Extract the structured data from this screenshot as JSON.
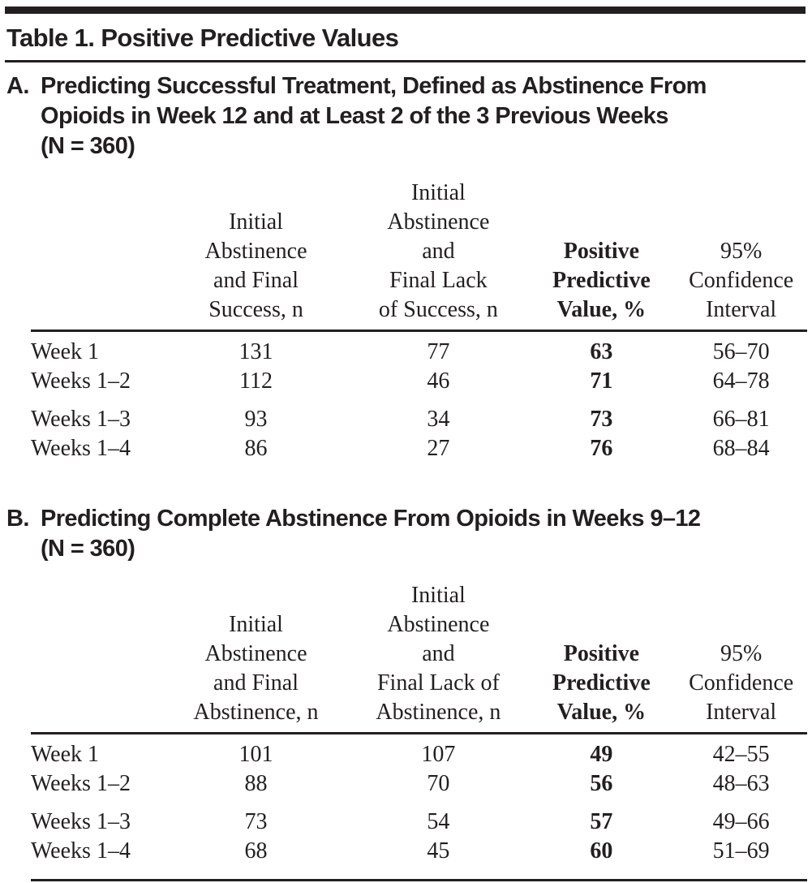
{
  "colors": {
    "text": "#231f20",
    "rule": "#231f20",
    "background": "#ffffff"
  },
  "table_title": "Table 1. Positive Predictive Values",
  "sections": [
    {
      "marker": "A.",
      "heading": "Predicting Successful Treatment, Defined as Abstinence From\nOpioids in Week 12 and at Least 2 of the 3 Previous Weeks\n(N = 360)",
      "columns": [
        "",
        "Initial\nAbstinence\nand Final\nSuccess, n",
        "Initial\nAbstinence\nand\nFinal Lack\nof Success, n",
        "Positive\nPredictive\nValue, %",
        "95%\nConfidence\nInterval"
      ],
      "rows": [
        {
          "label": "Week 1",
          "initial_final": "131",
          "initial_lack": "77",
          "ppv": "63",
          "ci": "56–70"
        },
        {
          "label": "Weeks 1–2",
          "initial_final": "112",
          "initial_lack": "46",
          "ppv": "71",
          "ci": "64–78"
        },
        {
          "label": "Weeks 1–3",
          "initial_final": "93",
          "initial_lack": "34",
          "ppv": "73",
          "ci": "66–81"
        },
        {
          "label": "Weeks 1–4",
          "initial_final": "86",
          "initial_lack": "27",
          "ppv": "76",
          "ci": "68–84"
        }
      ]
    },
    {
      "marker": "B.",
      "heading": "Predicting Complete Abstinence From Opioids in Weeks 9–12\n(N = 360)",
      "columns": [
        "",
        "Initial\nAbstinence\nand Final\nAbstinence, n",
        "Initial\nAbstinence\nand\nFinal Lack of\nAbstinence, n",
        "Positive\nPredictive\nValue, %",
        "95%\nConfidence\nInterval"
      ],
      "rows": [
        {
          "label": "Week 1",
          "initial_final": "101",
          "initial_lack": "107",
          "ppv": "49",
          "ci": "42–55"
        },
        {
          "label": "Weeks 1–2",
          "initial_final": "88",
          "initial_lack": "70",
          "ppv": "56",
          "ci": "48–63"
        },
        {
          "label": "Weeks 1–3",
          "initial_final": "73",
          "initial_lack": "54",
          "ppv": "57",
          "ci": "49–66"
        },
        {
          "label": "Weeks 1–4",
          "initial_final": "68",
          "initial_lack": "45",
          "ppv": "60",
          "ci": "51–69"
        }
      ]
    }
  ]
}
